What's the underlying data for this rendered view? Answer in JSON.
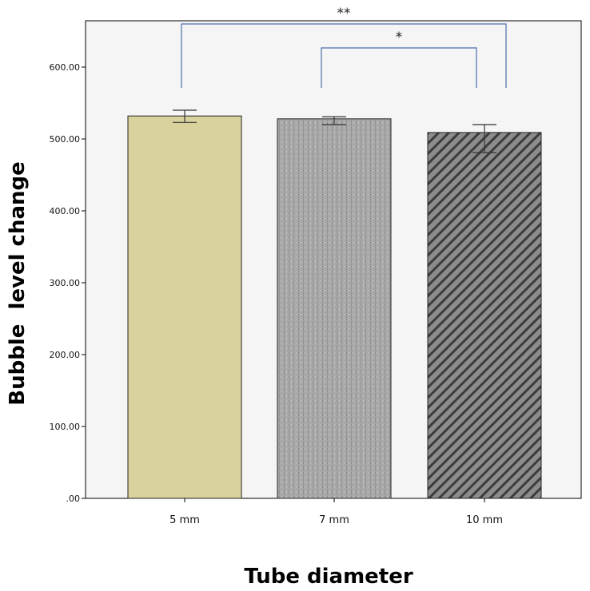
{
  "chart_data": {
    "type": "bar",
    "categories": [
      "5 mm",
      "7 mm",
      "10 mm"
    ],
    "values": [
      532,
      528,
      509
    ],
    "error_low": [
      523,
      520,
      481
    ],
    "error_high": [
      540,
      531,
      520
    ],
    "xlabel": "Tube diameter",
    "ylabel": "Bubble  level change",
    "ylim": [
      0,
      600
    ],
    "yticks": [
      0,
      100,
      200,
      300,
      400,
      500,
      600
    ],
    "ytick_labels": [
      ".00",
      "100.00",
      "200.00",
      "300.00",
      "400.00",
      "500.00",
      "600.00"
    ],
    "grid": false,
    "significance": [
      {
        "from": "5 mm",
        "to": "10 mm",
        "label": "**"
      },
      {
        "from": "7 mm",
        "to": "10 mm",
        "label": "*"
      }
    ],
    "bar_styles": [
      {
        "fill": "#d9d29c",
        "pattern": "solid"
      },
      {
        "fill": "#a9a9a9",
        "pattern": "dotted"
      },
      {
        "fill": "#7a7a7a",
        "pattern": "diagonal-stripes"
      }
    ],
    "colors": {
      "plot_background": "#f5f5f5",
      "bracket": "#4a6ea9",
      "error_bar": "#333333"
    }
  }
}
